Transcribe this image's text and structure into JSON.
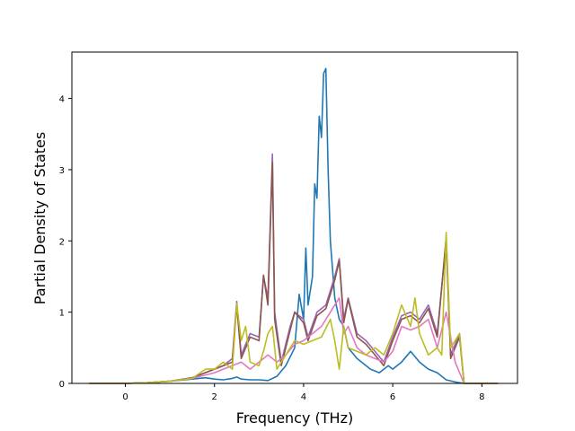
{
  "chart_data": {
    "type": "line",
    "title": "",
    "xlabel": "Frequency (THz)",
    "ylabel": "Partial Density of States",
    "xlim": [
      -1.2,
      8.8
    ],
    "ylim": [
      0,
      4.65
    ],
    "xticks": [
      0,
      2,
      4,
      6,
      8
    ],
    "yticks": [
      0,
      1,
      2,
      3,
      4
    ],
    "grid": false,
    "legend": "none",
    "series": [
      {
        "color": "#1f77b4",
        "points": [
          [
            -0.8,
            0
          ],
          [
            0.0,
            0.0
          ],
          [
            0.5,
            0.01
          ],
          [
            1.0,
            0.03
          ],
          [
            1.5,
            0.06
          ],
          [
            1.8,
            0.08
          ],
          [
            2.0,
            0.06
          ],
          [
            2.2,
            0.05
          ],
          [
            2.4,
            0.07
          ],
          [
            2.5,
            0.09
          ],
          [
            2.6,
            0.06
          ],
          [
            2.8,
            0.05
          ],
          [
            3.0,
            0.05
          ],
          [
            3.2,
            0.04
          ],
          [
            3.4,
            0.1
          ],
          [
            3.6,
            0.25
          ],
          [
            3.8,
            0.5
          ],
          [
            3.9,
            1.25
          ],
          [
            4.0,
            0.9
          ],
          [
            4.05,
            1.9
          ],
          [
            4.1,
            1.1
          ],
          [
            4.2,
            1.5
          ],
          [
            4.25,
            2.8
          ],
          [
            4.3,
            2.6
          ],
          [
            4.35,
            3.75
          ],
          [
            4.4,
            3.45
          ],
          [
            4.45,
            4.35
          ],
          [
            4.5,
            4.42
          ],
          [
            4.55,
            3.0
          ],
          [
            4.6,
            2.0
          ],
          [
            4.7,
            1.2
          ],
          [
            4.8,
            0.9
          ],
          [
            4.9,
            0.8
          ],
          [
            5.0,
            0.5
          ],
          [
            5.2,
            0.35
          ],
          [
            5.5,
            0.2
          ],
          [
            5.7,
            0.15
          ],
          [
            5.9,
            0.25
          ],
          [
            6.0,
            0.2
          ],
          [
            6.2,
            0.3
          ],
          [
            6.4,
            0.45
          ],
          [
            6.6,
            0.3
          ],
          [
            6.8,
            0.2
          ],
          [
            7.0,
            0.15
          ],
          [
            7.2,
            0.05
          ],
          [
            7.4,
            0.02
          ],
          [
            7.6,
            0.0
          ],
          [
            8.35,
            0
          ]
        ]
      },
      {
        "color": "#9467bd",
        "points": [
          [
            -0.8,
            0
          ],
          [
            0.0,
            0.0
          ],
          [
            0.5,
            0.01
          ],
          [
            1.0,
            0.03
          ],
          [
            1.5,
            0.08
          ],
          [
            2.0,
            0.2
          ],
          [
            2.2,
            0.25
          ],
          [
            2.4,
            0.35
          ],
          [
            2.5,
            1.15
          ],
          [
            2.6,
            0.4
          ],
          [
            2.8,
            0.7
          ],
          [
            3.0,
            0.65
          ],
          [
            3.1,
            1.5
          ],
          [
            3.2,
            1.2
          ],
          [
            3.3,
            3.22
          ],
          [
            3.35,
            1.0
          ],
          [
            3.5,
            0.3
          ],
          [
            3.7,
            0.8
          ],
          [
            3.8,
            1.0
          ],
          [
            4.0,
            0.9
          ],
          [
            4.1,
            0.65
          ],
          [
            4.3,
            1.0
          ],
          [
            4.5,
            1.1
          ],
          [
            4.7,
            1.5
          ],
          [
            4.8,
            1.75
          ],
          [
            4.9,
            0.9
          ],
          [
            5.0,
            1.2
          ],
          [
            5.2,
            0.7
          ],
          [
            5.4,
            0.6
          ],
          [
            5.6,
            0.45
          ],
          [
            5.8,
            0.3
          ],
          [
            6.0,
            0.65
          ],
          [
            6.2,
            0.95
          ],
          [
            6.4,
            1.0
          ],
          [
            6.6,
            0.9
          ],
          [
            6.8,
            1.1
          ],
          [
            7.0,
            0.7
          ],
          [
            7.2,
            2.0
          ],
          [
            7.3,
            0.4
          ],
          [
            7.5,
            0.7
          ],
          [
            7.6,
            0.0
          ],
          [
            8.35,
            0
          ]
        ]
      },
      {
        "color": "#8c564b",
        "points": [
          [
            -0.8,
            0
          ],
          [
            0.0,
            0.0
          ],
          [
            0.5,
            0.01
          ],
          [
            1.0,
            0.03
          ],
          [
            1.5,
            0.08
          ],
          [
            2.0,
            0.2
          ],
          [
            2.2,
            0.25
          ],
          [
            2.4,
            0.3
          ],
          [
            2.5,
            1.1
          ],
          [
            2.6,
            0.35
          ],
          [
            2.8,
            0.65
          ],
          [
            3.0,
            0.6
          ],
          [
            3.1,
            1.52
          ],
          [
            3.2,
            1.1
          ],
          [
            3.3,
            3.1
          ],
          [
            3.35,
            0.9
          ],
          [
            3.5,
            0.25
          ],
          [
            3.7,
            0.75
          ],
          [
            3.8,
            1.0
          ],
          [
            4.0,
            0.85
          ],
          [
            4.1,
            0.6
          ],
          [
            4.3,
            0.95
          ],
          [
            4.5,
            1.05
          ],
          [
            4.7,
            1.45
          ],
          [
            4.8,
            1.72
          ],
          [
            4.9,
            0.85
          ],
          [
            5.0,
            1.18
          ],
          [
            5.2,
            0.65
          ],
          [
            5.4,
            0.55
          ],
          [
            5.6,
            0.4
          ],
          [
            5.8,
            0.25
          ],
          [
            6.0,
            0.6
          ],
          [
            6.2,
            0.9
          ],
          [
            6.4,
            0.95
          ],
          [
            6.6,
            0.85
          ],
          [
            6.8,
            1.05
          ],
          [
            7.0,
            0.65
          ],
          [
            7.2,
            2.05
          ],
          [
            7.3,
            0.35
          ],
          [
            7.5,
            0.65
          ],
          [
            7.6,
            0.0
          ],
          [
            8.35,
            0
          ]
        ]
      },
      {
        "color": "#e377c2",
        "points": [
          [
            -0.8,
            0
          ],
          [
            0.0,
            0.0
          ],
          [
            0.5,
            0.01
          ],
          [
            1.0,
            0.03
          ],
          [
            1.5,
            0.07
          ],
          [
            2.0,
            0.15
          ],
          [
            2.2,
            0.2
          ],
          [
            2.4,
            0.25
          ],
          [
            2.6,
            0.3
          ],
          [
            2.8,
            0.2
          ],
          [
            3.0,
            0.3
          ],
          [
            3.2,
            0.4
          ],
          [
            3.4,
            0.3
          ],
          [
            3.6,
            0.4
          ],
          [
            3.8,
            0.55
          ],
          [
            4.0,
            0.6
          ],
          [
            4.2,
            0.7
          ],
          [
            4.4,
            0.8
          ],
          [
            4.6,
            1.0
          ],
          [
            4.8,
            1.2
          ],
          [
            4.9,
            0.7
          ],
          [
            5.0,
            0.8
          ],
          [
            5.2,
            0.5
          ],
          [
            5.4,
            0.4
          ],
          [
            5.6,
            0.35
          ],
          [
            5.8,
            0.3
          ],
          [
            6.0,
            0.45
          ],
          [
            6.2,
            0.8
          ],
          [
            6.4,
            0.75
          ],
          [
            6.6,
            0.8
          ],
          [
            6.8,
            0.9
          ],
          [
            7.0,
            0.5
          ],
          [
            7.2,
            1.0
          ],
          [
            7.4,
            0.3
          ],
          [
            7.6,
            0.0
          ],
          [
            8.35,
            0
          ]
        ]
      },
      {
        "color": "#bcbd22",
        "points": [
          [
            -0.8,
            0
          ],
          [
            0.0,
            0.0
          ],
          [
            0.5,
            0.01
          ],
          [
            1.0,
            0.03
          ],
          [
            1.5,
            0.07
          ],
          [
            1.8,
            0.2
          ],
          [
            2.0,
            0.2
          ],
          [
            2.2,
            0.3
          ],
          [
            2.4,
            0.2
          ],
          [
            2.5,
            1.12
          ],
          [
            2.6,
            0.6
          ],
          [
            2.7,
            0.8
          ],
          [
            2.8,
            0.3
          ],
          [
            3.0,
            0.25
          ],
          [
            3.1,
            0.45
          ],
          [
            3.2,
            0.7
          ],
          [
            3.3,
            0.8
          ],
          [
            3.4,
            0.2
          ],
          [
            3.6,
            0.4
          ],
          [
            3.8,
            0.6
          ],
          [
            4.0,
            0.55
          ],
          [
            4.2,
            0.6
          ],
          [
            4.4,
            0.65
          ],
          [
            4.6,
            0.9
          ],
          [
            4.7,
            0.6
          ],
          [
            4.8,
            0.2
          ],
          [
            4.9,
            0.8
          ],
          [
            5.0,
            0.5
          ],
          [
            5.2,
            0.45
          ],
          [
            5.4,
            0.4
          ],
          [
            5.6,
            0.5
          ],
          [
            5.8,
            0.4
          ],
          [
            6.0,
            0.7
          ],
          [
            6.2,
            1.1
          ],
          [
            6.4,
            0.8
          ],
          [
            6.5,
            1.2
          ],
          [
            6.6,
            0.7
          ],
          [
            6.8,
            0.4
          ],
          [
            7.0,
            0.5
          ],
          [
            7.1,
            0.4
          ],
          [
            7.2,
            2.12
          ],
          [
            7.3,
            0.5
          ],
          [
            7.5,
            0.7
          ],
          [
            7.6,
            0.0
          ],
          [
            8.35,
            0
          ]
        ]
      }
    ]
  }
}
